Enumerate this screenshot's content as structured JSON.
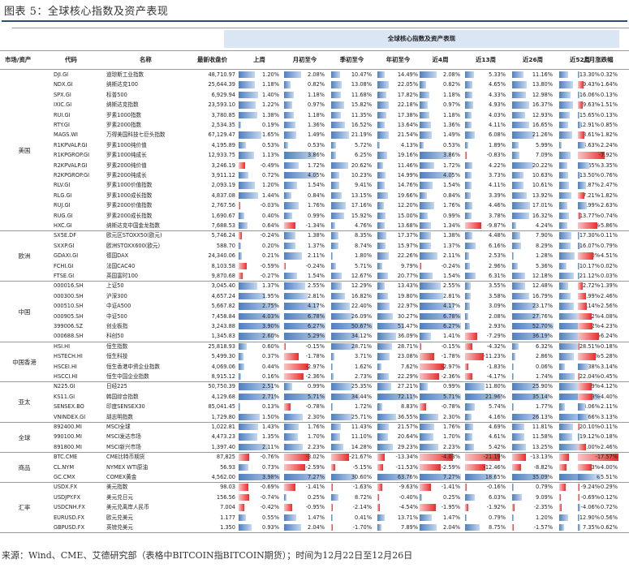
{
  "caption": "图表 5：全球核心指数及资产表现",
  "table_title": "全球核心指数及资产表现",
  "headers": [
    "市场/资产",
    "代码",
    "名称",
    "最新收盘价",
    "上周",
    "月初至今",
    "季初至今",
    "年初至今",
    "近4周",
    "近13周",
    "近26周",
    "近52周",
    "上月涨跌幅"
  ],
  "source": "来源：Wind、CME、艾德研究部（表格中BITCOIN指BITCOIN期货）；时间为12月22日至12月26日",
  "colors": {
    "positive": "#4f7fbf",
    "negative": "#e82d2d",
    "header": "#dbe6f4"
  },
  "scales": [
    3,
    5,
    50,
    80,
    5,
    25,
    40,
    60,
    12
  ],
  "groups": [
    {
      "name": "美国",
      "rows": [
        [
          "DJI.GI",
          "道琼斯工业指数",
          "48,710.97",
          [
            1.2,
            2.08,
            10.47,
            14.49,
            2.08,
            5.33,
            11.16,
            13.3,
            0.32
          ]
        ],
        [
          "NDX.GI",
          "纳斯达克100",
          "25,644.39",
          [
            1.18,
            0.82,
            13.08,
            22.05,
            0.82,
            4.65,
            13.8,
            19.43,
            -1.64
          ]
        ],
        [
          "SPX.GI",
          "标普500",
          "6,929.94",
          [
            1.4,
            1.18,
            11.68,
            17.82,
            1.18,
            4.33,
            12.98,
            16.06,
            0.13
          ]
        ],
        [
          "IXIC.GI",
          "纳斯达克指数",
          "23,593.10",
          [
            1.22,
            0.97,
            15.82,
            22.18,
            0.97,
            4.93,
            16.37,
            19.63,
            -1.51
          ]
        ],
        [
          "RUI.GI",
          "罗素1000指数",
          "3,780.85",
          [
            1.38,
            1.18,
            11.35,
            17.38,
            1.18,
            4.03,
            12.93,
            15.65,
            0.13
          ]
        ],
        [
          "RTY.GI",
          "罗素2000指数",
          "2,534.35",
          [
            0.19,
            1.36,
            16.52,
            13.64,
            1.36,
            4.11,
            16.65,
            12.91,
            0.85
          ]
        ],
        [
          "MAGS.WI",
          "万得美国科技七巨头指数",
          "67,129.47",
          [
            1.65,
            1.49,
            21.19,
            21.54,
            1.49,
            6.08,
            21.26,
            18.61,
            -1.82
          ]
        ],
        [
          "R1KPVALP.GI",
          "罗素1000纯价值",
          "4,195.89",
          [
            0.53,
            0.53,
            5.72,
            4.13,
            0.53,
            1.89,
            5.99,
            3.63,
            2.24
          ]
        ],
        [
          "R1KPGROP.GI",
          "罗素1000纯成长",
          "12,933.75",
          [
            1.13,
            3.86,
            6.25,
            19.16,
            3.86,
            -0.83,
            7.09,
            16.64,
            -7.92
          ]
        ],
        [
          "R2KPVALP.GI",
          "罗素2000纯价值",
          "3,246.19",
          [
            -0.49,
            1.72,
            20.62,
            11.46,
            1.72,
            4.22,
            20.22,
            11.65,
            3.35
          ]
        ],
        [
          "R2KPGROP.GI",
          "罗素2000纯成长",
          "3,911.12",
          [
            0.72,
            4.05,
            10.23,
            14.99,
            4.05,
            3.73,
            10.63,
            13.5,
            0.76
          ]
        ],
        [
          "RLV.GI",
          "罗素1000价值指数",
          "2,093.19",
          [
            1.2,
            1.54,
            9.41,
            14.76,
            1.54,
            4.11,
            10.61,
            13.87,
            2.47
          ]
        ],
        [
          "RLG.GI",
          "罗素1000成长指数",
          "4,837.08",
          [
            1.44,
            0.84,
            13.15,
            19.66,
            0.84,
            3.39,
            13.92,
            17.21,
            -1.82
          ]
        ],
        [
          "RUJ.GI",
          "罗素2000价值指数",
          "2,767.56",
          [
            -0.03,
            1.76,
            17.16,
            12.2,
            1.76,
            4.46,
            17.01,
            11.99,
            2.63
          ]
        ],
        [
          "RUG.GI",
          "罗素2000成长指数",
          "1,690.67",
          [
            0.4,
            0.99,
            15.92,
            15.0,
            0.99,
            3.78,
            16.32,
            13.77,
            -0.74
          ]
        ],
        [
          "HXC.GI",
          "纳斯达克中国金龙指数",
          "7,688.53",
          [
            0.64,
            -1.34,
            4.76,
            13.68,
            1.34,
            -9.87,
            4.24,
            11.96,
            -5.86
          ]
        ]
      ]
    },
    {
      "name": "欧洲",
      "rows": [
        [
          "SX5E.DF",
          "欧元区STOXX50(欧元)",
          "5,746.24",
          [
            -0.24,
            1.38,
            8.35,
            17.37,
            1.38,
            4.48,
            7.9,
            17.3,
            0.11
          ]
        ],
        [
          "SXXP.GI",
          "欧洲STOXX600(欧元)",
          "588.70",
          [
            0.2,
            1.37,
            8.74,
            15.97,
            1.37,
            6.16,
            8.29,
            16.07,
            0.79
          ]
        ],
        [
          "GDAXI.GI",
          "德国DAX",
          "24,340.06",
          [
            0.21,
            2.11,
            1.8,
            22.26,
            2.11,
            2.53,
            1.28,
            21.8,
            -4.51
          ]
        ],
        [
          "FCHI.GI",
          "法国CAC40",
          "8,103.58",
          [
            -0.59,
            -0.24,
            5.71,
            9.79,
            -0.24,
            2.96,
            5.36,
            10.17,
            0.02
          ]
        ],
        [
          "FTSE.GI",
          "英国富时100",
          "9,870.68",
          [
            -0.27,
            1.54,
            12.67,
            20.77,
            1.54,
            6.31,
            12.18,
            21.12,
            0.03
          ]
        ]
      ]
    },
    {
      "name": "中国",
      "rows": [
        [
          "000016.SH",
          "上证50",
          "3,045.40",
          [
            1.37,
            2.55,
            12.29,
            13.43,
            2.55,
            3.55,
            12.48,
            12.72,
            -1.39
          ]
        ],
        [
          "000300.SH",
          "沪深300",
          "4,657.24",
          [
            1.95,
            2.81,
            16.82,
            19.8,
            2.81,
            3.58,
            16.79,
            16.99,
            -2.46
          ]
        ],
        [
          "000510.SH",
          "中证A500",
          "5,667.82",
          [
            2.75,
            4.17,
            22.4,
            22.97,
            4.17,
            3.09,
            23.17,
            21.14,
            -2.56
          ]
        ],
        [
          "000905.SH",
          "中证500",
          "7,458.84",
          [
            4.03,
            6.78,
            26.09,
            30.27,
            6.78,
            2.08,
            27.76,
            26.82,
            -4.08
          ]
        ],
        [
          "399006.SZ",
          "创业板指",
          "3,243.88",
          [
            3.9,
            6.27,
            50.67,
            51.47,
            6.27,
            2.93,
            52.7,
            47.12,
            -4.23
          ]
        ],
        [
          "000688.SH",
          "科创50",
          "1,345.83",
          [
            2.6,
            5.29,
            34.12,
            36.09,
            1.41,
            -7.29,
            36.19,
            32.13,
            -6.24
          ]
        ]
      ]
    },
    {
      "name": "中国香港",
      "rows": [
        [
          "HSI.HI",
          "恒生指数",
          "25,818.93",
          [
            0.6,
            -0.15,
            28.71,
            28.71,
            -0.15,
            -4.32,
            6.32,
            28.51,
            -0.18
          ]
        ],
        [
          "HSTECH.HI",
          "恒生科技",
          "5,499.30",
          [
            0.37,
            -1.78,
            3.71,
            23.08,
            -1.78,
            -11.23,
            2.86,
            21.75,
            -5.28
          ]
        ],
        [
          "HSCEI.HI",
          "恒生香港中资企业指数",
          "4,069.06",
          [
            0.44,
            -2.97,
            1.62,
            7.62,
            -2.97,
            -1.83,
            0.06,
            8.38,
            3.14
          ]
        ],
        [
          "HSCCI.HI",
          "恒生中国企业指数",
          "8,915.12",
          [
            0.16,
            -2.36,
            2.73,
            22.29,
            -2.36,
            -4.17,
            1.74,
            22.04,
            -0.45
          ]
        ]
      ]
    },
    {
      "name": "亚太",
      "rows": [
        [
          "N225.GI",
          "日经225",
          "50,750.39",
          [
            2.51,
            0.99,
            25.35,
            27.21,
            0.99,
            11.8,
            25.9,
            26.89,
            -4.12
          ]
        ],
        [
          "KS11.GI",
          "韩国综合指数",
          "4,129.68",
          [
            2.71,
            5.71,
            34.44,
            72.11,
            5.71,
            21.96,
            35.14,
            71.73,
            -4.4
          ]
        ],
        [
          "SENSEX.BO",
          "印度SENSEX30",
          "85,041.45",
          [
            0.13,
            -0.78,
            1.72,
            8.83,
            -0.78,
            5.74,
            1.77,
            8.06,
            2.11
          ]
        ],
        [
          "VNINDEX.GI",
          "胡志明指数",
          "1,729.80",
          [
            1.5,
            2.3,
            25.71,
            36.55,
            2.3,
            4.16,
            26.13,
            35.66,
            3.13
          ]
        ]
      ]
    },
    {
      "name": "全球",
      "rows": [
        [
          "892400.MI",
          "MSCI全球",
          "1,022.81",
          [
            1.43,
            1.76,
            11.43,
            21.57,
            1.76,
            4.69,
            11.81,
            20.1,
            -0.11
          ]
        ],
        [
          "990100.MI",
          "MSCI发达市场",
          "4,473.23",
          [
            1.35,
            1.7,
            11.1,
            20.64,
            1.7,
            4.61,
            11.58,
            19.12,
            0.18
          ]
        ],
        [
          "891800.MI",
          "MSCI新兴市场",
          "1,397.40",
          [
            2.11,
            2.23,
            14.28,
            29.23,
            2.23,
            5.42,
            13.25,
            29.0,
            -2.46
          ]
        ]
      ]
    },
    {
      "name": "商品",
      "rows": [
        [
          "BTC.CME",
          "CME比特币期货",
          "87,825",
          [
            -0.76,
            -3.02,
            -21.67,
            -13.34,
            -4.03,
            -21.19,
            -13.13,
            -14.42,
            -17.57
          ]
        ],
        [
          "CL.NYM",
          "NYMEX WTI原油",
          "56.93",
          [
            0.73,
            -2.59,
            -5.15,
            -11.53,
            -2.59,
            -12.46,
            -8.82,
            -10.13,
            -4.0
          ]
        ],
        [
          "GC.CMX",
          "COMEX黄金",
          "4,562.00",
          [
            3.98,
            7.27,
            30.6,
            63.76,
            7.27,
            18.65,
            35.09,
            64.33,
            5.51
          ]
        ]
      ]
    },
    {
      "name": "汇率",
      "rows": [
        [
          "USDX.FX",
          "美元指数",
          "98.03",
          [
            -0.69,
            -1.41,
            -1.63,
            -9.63,
            -1.41,
            -0.16,
            0.79,
            -9.24,
            -0.29
          ]
        ],
        [
          "USDJPY.FX",
          "美元兑日元",
          "156.56",
          [
            -0.74,
            0.25,
            8.72,
            -0.4,
            0.25,
            6.03,
            9.09,
            -0.69,
            -0.12
          ]
        ],
        [
          "USDCNH.FX",
          "美元兑离岸人民币",
          "7.004",
          [
            -0.42,
            -0.95,
            -2.14,
            -4.54,
            -1.95,
            -1.92,
            -2.35,
            -4.06,
            0.72
          ]
        ],
        [
          "EURUSD.FX",
          "欧元兑美元",
          "1.177",
          [
            0.55,
            1.47,
            0.41,
            13.71,
            1.47,
            0.79,
            1.2,
            12.9,
            0.56
          ]
        ],
        [
          "GBPUSD.FX",
          "英镑兑美元",
          "1.350",
          [
            0.93,
            2.04,
            -1.7,
            7.89,
            2.04,
            8.75,
            -1.57,
            7.35,
            0.62
          ]
        ]
      ]
    }
  ]
}
